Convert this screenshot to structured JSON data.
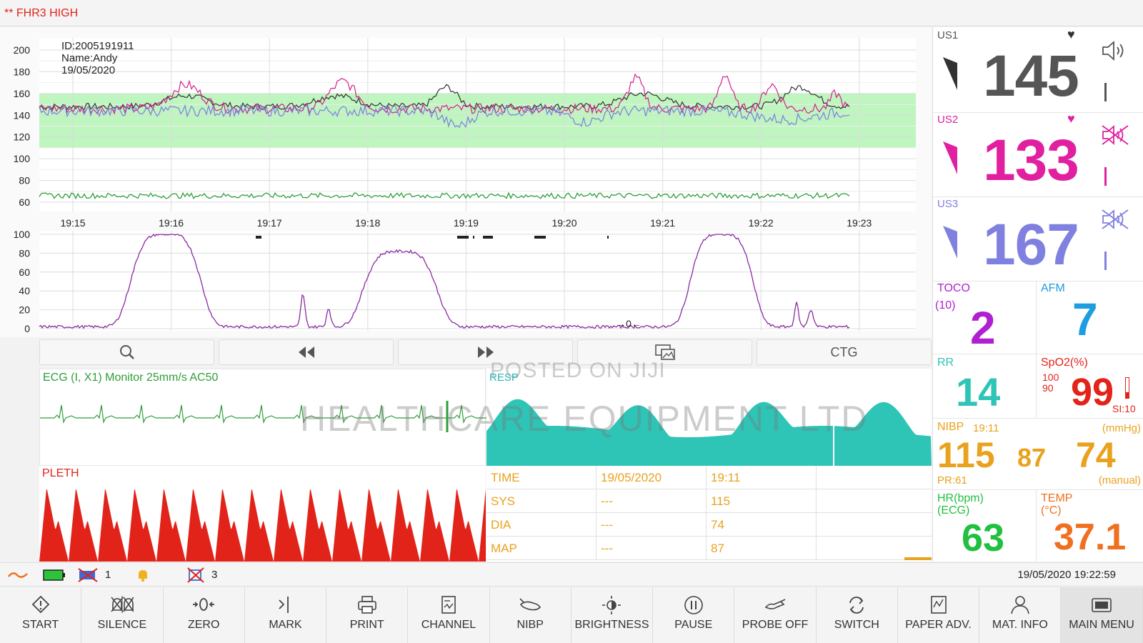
{
  "alarm": {
    "text": "** FHR3 HIGH"
  },
  "patient": {
    "id": "ID:2005191911",
    "name": "Name:Andy",
    "date": "19/05/2020"
  },
  "fhr_chart": {
    "y_ticks": [
      "200",
      "180",
      "160",
      "140",
      "120",
      "100",
      "80",
      "60"
    ],
    "x_ticks": [
      "19:15",
      "19:16",
      "19:17",
      "19:18",
      "19:19",
      "19:20",
      "19:21",
      "19:22",
      "19:23"
    ],
    "normal_band": [
      110,
      160
    ],
    "colors": {
      "us1": "#333333",
      "us2": "#d4208f",
      "us3": "#7b7fe0",
      "mhr": "#2e9e3a",
      "band": "#bff5bf"
    }
  },
  "toco_chart": {
    "y_ticks": [
      "100",
      "80",
      "60",
      "40",
      "20",
      "0"
    ],
    "zero_marker": "→0←",
    "color": "#8a2ba0"
  },
  "chart_tools": {
    "zoom": "zoom-icon",
    "rewind": "rewind-icon",
    "forward": "fast-forward-icon",
    "view": "image-view-icon",
    "ctg_label": "CTG"
  },
  "ecg": {
    "label": "ECG   (I, X1)   Monitor   25mm/s   AC50",
    "color": "#2e9e3a"
  },
  "resp": {
    "label": "RESP",
    "color": "#2ec4b6"
  },
  "pleth": {
    "label": "PLETH",
    "color": "#e2231a"
  },
  "watermark": {
    "line1": "POSTED ON JIJI",
    "line2": "HEALTHCARE EQUIPMENT LTD"
  },
  "nibp_table": {
    "rows": [
      {
        "label": "TIME",
        "col1": "19/05/2020",
        "col2": "19:11"
      },
      {
        "label": "SYS",
        "col1": "---",
        "col2": "115"
      },
      {
        "label": "DIA",
        "col1": "---",
        "col2": "74"
      },
      {
        "label": "MAP",
        "col1": "---",
        "col2": "87"
      }
    ]
  },
  "params": {
    "us1": {
      "label": "US1",
      "value": "145",
      "color": "#555555"
    },
    "us2": {
      "label": "US2",
      "value": "133",
      "color": "#e020a0"
    },
    "us3": {
      "label": "US3",
      "value": "167",
      "color": "#8080e0"
    },
    "toco": {
      "label": "TOCO",
      "sub": "(10)",
      "value": "2",
      "color": "#b020d0"
    },
    "afm": {
      "label": "AFM",
      "value": "7",
      "color": "#1e9de0"
    },
    "rr": {
      "label": "RR",
      "value": "14",
      "color": "#2ec4b6"
    },
    "spo2": {
      "label": "SpO2(%)",
      "hi": "100",
      "lo": "90",
      "value": "99",
      "si": "SI:10",
      "color": "#e2231a"
    },
    "nibp": {
      "label": "NIBP",
      "time": "19:11",
      "unit": "(mmHg)",
      "sys": "115",
      "map": "87",
      "dia": "74",
      "pr": "PR:61",
      "mode": "(manual)",
      "color": "#e9a21d"
    },
    "hr": {
      "label": "HR(bpm)",
      "sub": "(ECG)",
      "value": "63",
      "color": "#22c040"
    },
    "temp": {
      "label": "TEMP",
      "sub": "(°C)",
      "value": "37.1",
      "color": "#f07020"
    }
  },
  "status_bar": {
    "count1": "1",
    "count2": "3",
    "datetime": "19/05/2020 19:22:59"
  },
  "bottom_buttons": [
    {
      "label": "START",
      "icon": "start-icon"
    },
    {
      "label": "SILENCE",
      "icon": "silence-icon"
    },
    {
      "label": "ZERO",
      "icon": "zero-icon"
    },
    {
      "label": "MARK",
      "icon": "mark-icon"
    },
    {
      "label": "PRINT",
      "icon": "print-icon"
    },
    {
      "label": "CHANNEL",
      "icon": "channel-icon"
    },
    {
      "label": "NIBP",
      "icon": "nibp-icon"
    },
    {
      "label": "BRIGHTNESS",
      "icon": "brightness-icon"
    },
    {
      "label": "PAUSE",
      "icon": "pause-icon"
    },
    {
      "label": "PROBE OFF",
      "icon": "probe-icon"
    },
    {
      "label": "SWITCH",
      "icon": "switch-icon"
    },
    {
      "label": "PAPER ADV.",
      "icon": "paper-icon"
    },
    {
      "label": "MAT. INFO",
      "icon": "person-icon"
    },
    {
      "label": "MAIN MENU",
      "icon": "menu-icon"
    }
  ]
}
